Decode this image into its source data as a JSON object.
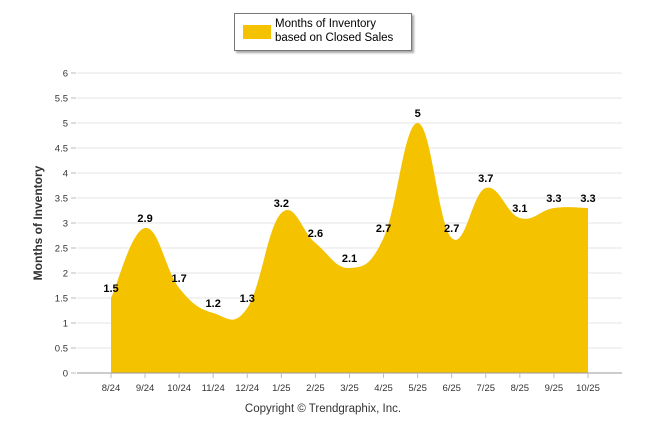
{
  "chart_data": {
    "type": "area",
    "categories": [
      "8/24",
      "9/24",
      "10/24",
      "11/24",
      "12/24",
      "1/25",
      "2/25",
      "3/25",
      "4/25",
      "5/25",
      "6/25",
      "7/25",
      "8/25",
      "9/25",
      "10/25"
    ],
    "series": [
      {
        "name": "Months of Inventory based on Closed Sales",
        "values": [
          1.5,
          2.9,
          1.7,
          1.2,
          1.3,
          3.2,
          2.6,
          2.1,
          2.7,
          5,
          2.7,
          3.7,
          3.1,
          3.3,
          3.3
        ]
      }
    ],
    "data_labels": [
      "1.5",
      "2.9",
      "1.7",
      "1.2",
      "1.3",
      "3.2",
      "2.6",
      "2.1",
      "2.7",
      "5",
      "2.7",
      "3.7",
      "3.1",
      "3.3",
      "3.3"
    ],
    "ylabel": "Months of Inventory",
    "xlabel": "",
    "ylim": [
      0,
      6
    ],
    "yticks": [
      "0",
      "0.5",
      "1",
      "1.5",
      "2",
      "2.5",
      "3",
      "3.5",
      "4",
      "4.5",
      "5",
      "5.5",
      "6"
    ],
    "legend": {
      "label": "Months of Inventory based on Closed Sales",
      "position": "top-center"
    },
    "grid": true,
    "colors": {
      "fill": "#F5C200",
      "grid": "#e6e6e6",
      "axis": "#999999"
    }
  },
  "footer": {
    "copyright": "Copyright © Trendgraphix, Inc."
  }
}
